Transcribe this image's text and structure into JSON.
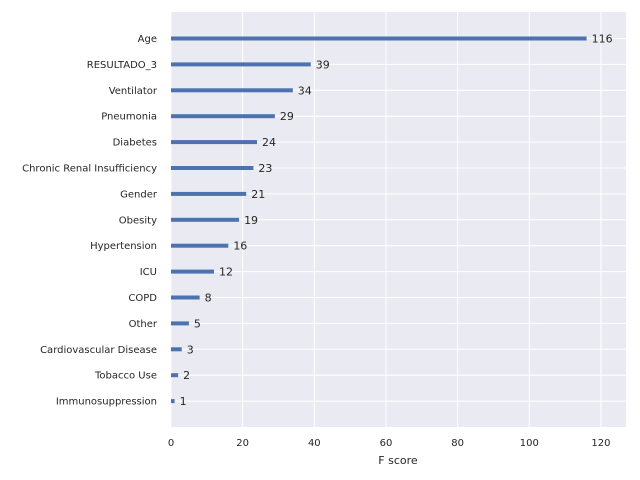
{
  "chart_data": {
    "type": "bar",
    "orientation": "horizontal",
    "title": "",
    "xlabel": "F score",
    "ylabel": "",
    "xlim": [
      0,
      127
    ],
    "xticks": [
      0,
      20,
      40,
      60,
      80,
      100,
      120
    ],
    "grid": true,
    "categories": [
      "Age",
      "RESULTADO_3",
      "Ventilator",
      "Pneumonia",
      "Diabetes",
      "Chronic Renal Insufficiency",
      "Gender",
      "Obesity",
      "Hypertension",
      "ICU",
      "COPD",
      "Other",
      "Cardiovascular Disease",
      "Tobacco Use",
      "Immunosuppression"
    ],
    "values": [
      116,
      39,
      34,
      29,
      24,
      23,
      21,
      19,
      16,
      12,
      8,
      5,
      3,
      2,
      1
    ],
    "bar_color": "#4c72b0",
    "background_color": "#eaeaf2",
    "grid_color": "#ffffff"
  }
}
